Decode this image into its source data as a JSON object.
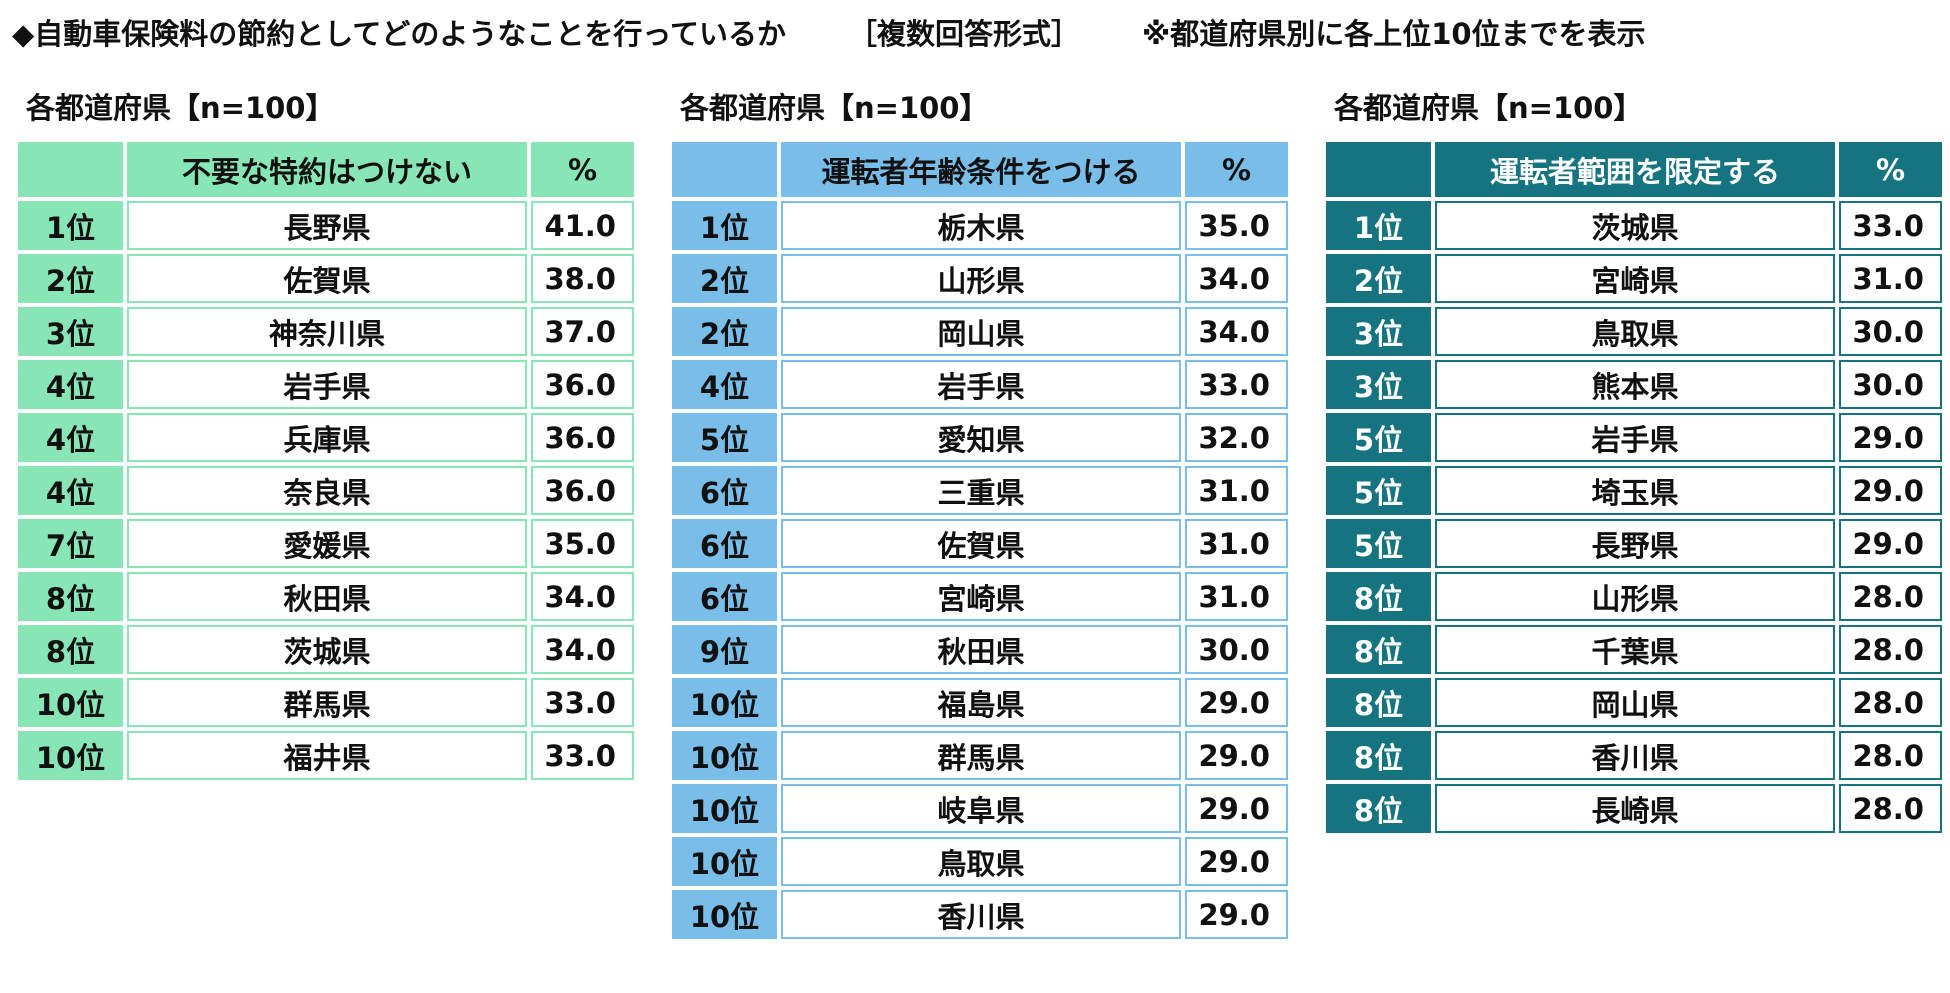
{
  "header": {
    "question": "◆自動車保険料の節約としてどのようなことを行っているか",
    "format": "［複数回答形式］",
    "note": "※都道府県別に各上位10位までを表示"
  },
  "blocks": [
    {
      "title": "各都道府県【n=100】",
      "column_header": "不要な特約はつけない",
      "pct_header": "%",
      "colors": {
        "header": "#88e6b6",
        "rank": "#88e6b6",
        "border": "#88e6b6",
        "header_text": "#111111"
      },
      "rows": [
        {
          "rank": "1位",
          "pref": "長野県",
          "value": "41.0"
        },
        {
          "rank": "2位",
          "pref": "佐賀県",
          "value": "38.0"
        },
        {
          "rank": "3位",
          "pref": "神奈川県",
          "value": "37.0"
        },
        {
          "rank": "4位",
          "pref": "岩手県",
          "value": "36.0"
        },
        {
          "rank": "4位",
          "pref": "兵庫県",
          "value": "36.0"
        },
        {
          "rank": "4位",
          "pref": "奈良県",
          "value": "36.0"
        },
        {
          "rank": "7位",
          "pref": "愛媛県",
          "value": "35.0"
        },
        {
          "rank": "8位",
          "pref": "秋田県",
          "value": "34.0"
        },
        {
          "rank": "8位",
          "pref": "茨城県",
          "value": "34.0"
        },
        {
          "rank": "10位",
          "pref": "群馬県",
          "value": "33.0"
        },
        {
          "rank": "10位",
          "pref": "福井県",
          "value": "33.0"
        }
      ]
    },
    {
      "title": "各都道府県【n=100】",
      "column_header": "運転者年齢条件をつける",
      "pct_header": "%",
      "colors": {
        "header": "#79bde9",
        "rank": "#79bde9",
        "border": "#79bde9",
        "header_text": "#111111"
      },
      "rows": [
        {
          "rank": "1位",
          "pref": "栃木県",
          "value": "35.0"
        },
        {
          "rank": "2位",
          "pref": "山形県",
          "value": "34.0"
        },
        {
          "rank": "2位",
          "pref": "岡山県",
          "value": "34.0"
        },
        {
          "rank": "4位",
          "pref": "岩手県",
          "value": "33.0"
        },
        {
          "rank": "5位",
          "pref": "愛知県",
          "value": "32.0"
        },
        {
          "rank": "6位",
          "pref": "三重県",
          "value": "31.0"
        },
        {
          "rank": "6位",
          "pref": "佐賀県",
          "value": "31.0"
        },
        {
          "rank": "6位",
          "pref": "宮崎県",
          "value": "31.0"
        },
        {
          "rank": "9位",
          "pref": "秋田県",
          "value": "30.0"
        },
        {
          "rank": "10位",
          "pref": "福島県",
          "value": "29.0"
        },
        {
          "rank": "10位",
          "pref": "群馬県",
          "value": "29.0"
        },
        {
          "rank": "10位",
          "pref": "岐阜県",
          "value": "29.0"
        },
        {
          "rank": "10位",
          "pref": "鳥取県",
          "value": "29.0"
        },
        {
          "rank": "10位",
          "pref": "香川県",
          "value": "29.0"
        }
      ]
    },
    {
      "title": "各都道府県【n=100】",
      "column_header": "運転者範囲を限定する",
      "pct_header": "%",
      "colors": {
        "header": "#157480",
        "rank": "#157480",
        "border": "#157480",
        "header_text": "#ffffff"
      },
      "rows": [
        {
          "rank": "1位",
          "pref": "茨城県",
          "value": "33.0"
        },
        {
          "rank": "2位",
          "pref": "宮崎県",
          "value": "31.0"
        },
        {
          "rank": "3位",
          "pref": "鳥取県",
          "value": "30.0"
        },
        {
          "rank": "3位",
          "pref": "熊本県",
          "value": "30.0"
        },
        {
          "rank": "5位",
          "pref": "岩手県",
          "value": "29.0"
        },
        {
          "rank": "5位",
          "pref": "埼玉県",
          "value": "29.0"
        },
        {
          "rank": "5位",
          "pref": "長野県",
          "value": "29.0"
        },
        {
          "rank": "8位",
          "pref": "山形県",
          "value": "28.0"
        },
        {
          "rank": "8位",
          "pref": "千葉県",
          "value": "28.0"
        },
        {
          "rank": "8位",
          "pref": "岡山県",
          "value": "28.0"
        },
        {
          "rank": "8位",
          "pref": "香川県",
          "value": "28.0"
        },
        {
          "rank": "8位",
          "pref": "長崎県",
          "value": "28.0"
        }
      ]
    }
  ]
}
